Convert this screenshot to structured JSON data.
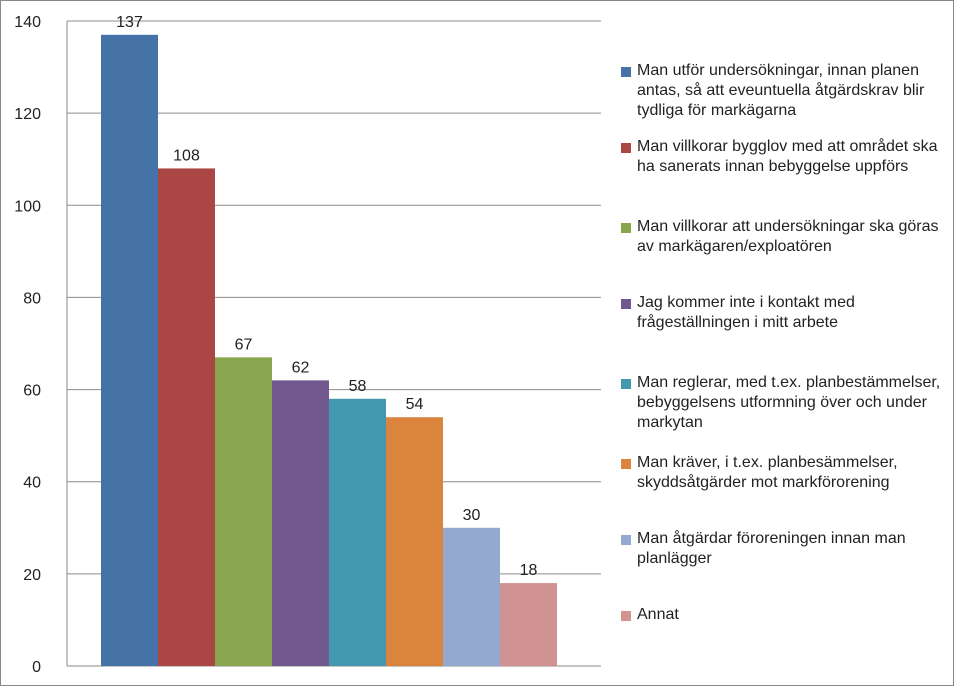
{
  "chart_data": {
    "type": "bar",
    "title": "",
    "xlabel": "",
    "ylabel": "",
    "ylim": [
      0,
      140
    ],
    "yticks": [
      0,
      20,
      40,
      60,
      80,
      100,
      120,
      140
    ],
    "grid": true,
    "legend_position": "right",
    "categories": [
      "Man utför undersökningar, innan planen antas, så att eveuntuella åtgärdskrav blir tydliga för markägarna",
      "Man villkorar bygglov med att området ska ha sanerats innan bebyggelse uppförs",
      "Man villkorar att undersökningar ska göras av markägaren/exploatören",
      "Jag kommer inte i kontakt med frågeställningen i mitt arbete",
      "Man reglerar, med t.ex. planbestämmelser, bebyggelsens utformning över och under markytan",
      "Man kräver, i t.ex. planbesämmelser, skyddsåtgärder mot markförorening",
      "Man åtgärdar föroreningen innan man planlägger",
      "Annat"
    ],
    "values": [
      137,
      108,
      67,
      62,
      58,
      54,
      30,
      18
    ],
    "colors": [
      "#4572a7",
      "#aa4643",
      "#89a54e",
      "#71588f",
      "#4198af",
      "#db843d",
      "#93a9cf",
      "#d19392"
    ]
  }
}
